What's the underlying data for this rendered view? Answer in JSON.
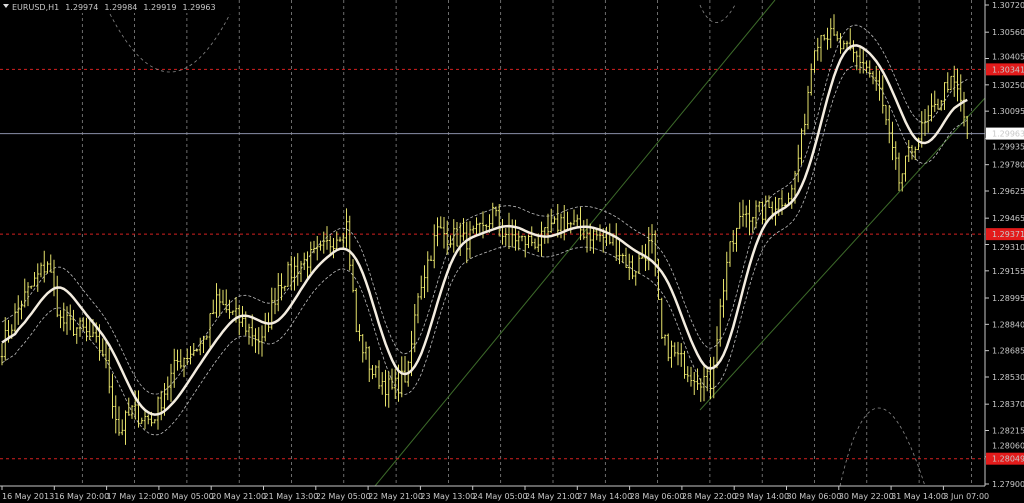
{
  "header": {
    "symbol": "EURUSD,H1",
    "open": "1.29974",
    "high": "1.29984",
    "low": "1.29919",
    "close": "1.29963"
  },
  "colors": {
    "background": "#000000",
    "bars": "#e6e26c",
    "ma": "#f4ede0",
    "envelope": "#bdbdbd",
    "level_line": "#d42020",
    "level_label_bg": "#e31b1b",
    "channel": "#3d6b2a",
    "current_price_line": "#8a8fa8"
  },
  "chart_data": {
    "type": "ohlc-bar",
    "title": "EURUSD,H1",
    "ylim": [
      1.279,
      1.3072
    ],
    "y_ticks": [
      "1.30720",
      "1.30560",
      "1.30405",
      "1.30250",
      "1.30095",
      "1.29935",
      "1.29780",
      "1.29625",
      "1.29465",
      "1.29310",
      "1.29155",
      "1.28995",
      "1.28840",
      "1.28685",
      "1.28530",
      "1.28370",
      "1.28215",
      "1.28060",
      "1.27900"
    ],
    "x_ticks": [
      "16 May 2013",
      "16 May 20:00",
      "17 May 12:00",
      "20 May 05:00",
      "20 May 21:00",
      "21 May 13:00",
      "22 May 05:00",
      "22 May 21:00",
      "23 May 13:00",
      "24 May 05:00",
      "24 May 21:00",
      "27 May 14:00",
      "28 May 06:00",
      "28 May 22:00",
      "29 May 14:00",
      "30 May 06:00",
      "30 May 22:00",
      "31 May 14:00",
      "3 Jun 07:00"
    ],
    "levels": [
      {
        "price": 1.30341,
        "label": "1.30341"
      },
      {
        "price": 1.29371,
        "label": "1.29371"
      },
      {
        "price": 1.28049,
        "label": "1.28049"
      }
    ],
    "current_price": {
      "price": 1.29963,
      "label": "1.29963"
    },
    "grid": true,
    "close_anchors": [
      [
        0,
        1.2871
      ],
      [
        6,
        1.2897
      ],
      [
        14,
        1.2921
      ],
      [
        18,
        1.2886
      ],
      [
        25,
        1.288
      ],
      [
        31,
        1.2868
      ],
      [
        36,
        1.2821
      ],
      [
        40,
        1.2833
      ],
      [
        46,
        1.2827
      ],
      [
        54,
        1.2862
      ],
      [
        62,
        1.2874
      ],
      [
        66,
        1.2897
      ],
      [
        74,
        1.2885
      ],
      [
        80,
        1.2873
      ],
      [
        85,
        1.2908
      ],
      [
        92,
        1.292
      ],
      [
        98,
        1.2926
      ],
      [
        106,
        1.2943
      ],
      [
        109,
        1.288
      ],
      [
        114,
        1.2856
      ],
      [
        120,
        1.2845
      ],
      [
        125,
        1.2856
      ],
      [
        128,
        1.2903
      ],
      [
        134,
        1.2939
      ],
      [
        142,
        1.2933
      ],
      [
        148,
        1.2939
      ],
      [
        151,
        1.295
      ],
      [
        154,
        1.2939
      ],
      [
        160,
        1.2933
      ],
      [
        166,
        1.2933
      ],
      [
        172,
        1.2945
      ],
      [
        179,
        1.2939
      ],
      [
        188,
        1.2933
      ],
      [
        194,
        1.2915
      ],
      [
        200,
        1.2933
      ],
      [
        203,
        1.2874
      ],
      [
        212,
        1.2856
      ],
      [
        218,
        1.285
      ],
      [
        223,
        1.2921
      ],
      [
        228,
        1.295
      ],
      [
        234,
        1.295
      ],
      [
        243,
        1.2962
      ],
      [
        246,
        1.2992
      ],
      [
        250,
        1.3051
      ],
      [
        253,
        1.3057
      ],
      [
        259,
        1.3045
      ],
      [
        265,
        1.3039
      ],
      [
        270,
        1.3021
      ],
      [
        273,
        1.2992
      ],
      [
        276,
        1.2968
      ],
      [
        281,
        1.2992
      ],
      [
        287,
        1.301
      ],
      [
        291,
        1.3027
      ],
      [
        294,
        1.3021
      ],
      [
        297,
        1.2998
      ]
    ]
  }
}
